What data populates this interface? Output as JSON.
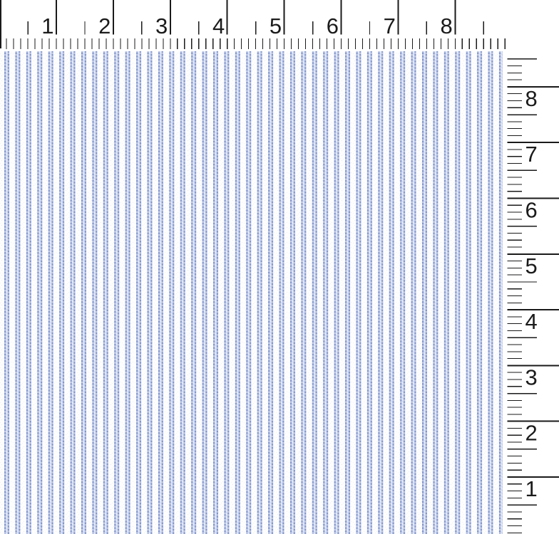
{
  "top_ruler": {
    "labels": [
      "1",
      "2",
      "3",
      "4",
      "5",
      "6",
      "7",
      "8"
    ]
  },
  "right_ruler": {
    "labels": [
      "8",
      "7",
      "6",
      "5",
      "4",
      "3",
      "2",
      "1"
    ]
  },
  "fabric": {
    "colors": {
      "stripe_blue": "#7e91c8",
      "stripe_blue_light": "#b7c3e6",
      "stripe_center": "#e4eaf6",
      "ground": "#fdfdfe"
    }
  },
  "ruler": {
    "tick_color": "#1a1a1a"
  }
}
